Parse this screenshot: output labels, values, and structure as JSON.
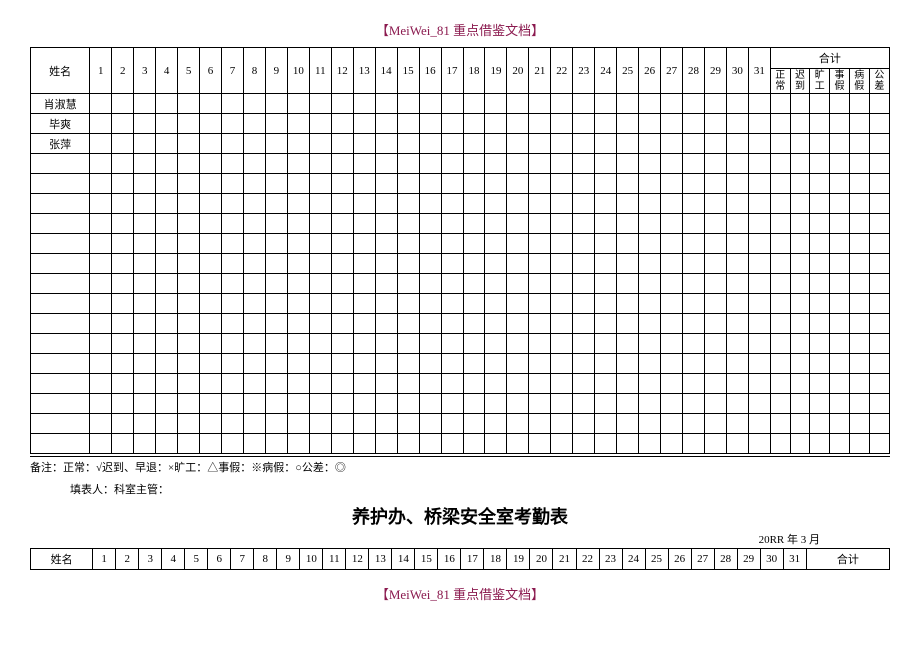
{
  "header": "【MeiWei_81 重点借鉴文档】",
  "footer": "【MeiWei_81 重点借鉴文档】",
  "table1": {
    "name_col": "姓名",
    "total_col": "合计",
    "sub_cols": [
      "正常",
      "迟到",
      "旷工",
      "事假",
      "病假",
      "公差"
    ],
    "names": [
      "肖淑慧",
      "毕爽",
      "张萍"
    ],
    "empty_rows": 15
  },
  "legend": "备注：正常：√迟到、早退：×旷工：△事假：※病假：○公差：◎",
  "filler": "填表人：科室主管：",
  "second_title": "养护办、桥梁安全室考勤表",
  "date_line": "20RR 年 3 月",
  "table2": {
    "name_col": "姓名",
    "total_col": "合计"
  }
}
